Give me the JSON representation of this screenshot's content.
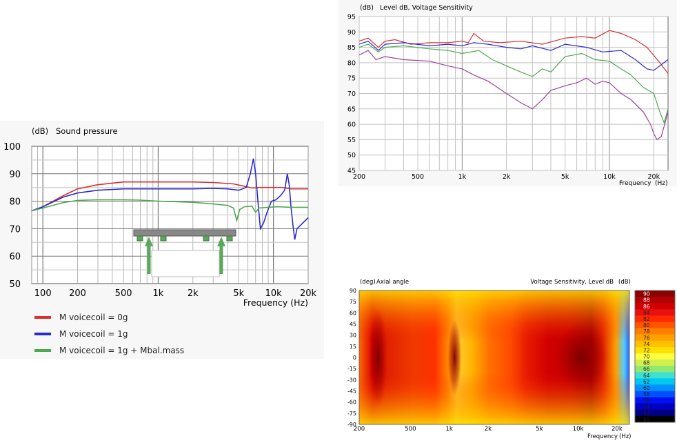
{
  "chart_data": [
    {
      "type": "line",
      "title": "Sound pressure",
      "ylabel_unit": "(dB)",
      "xlabel": "Frequency  (Hz)",
      "xscale": "log",
      "xlim": [
        80,
        20000
      ],
      "ylim": [
        50,
        100
      ],
      "yticks": [
        50,
        60,
        70,
        80,
        90,
        100
      ],
      "xticks": [
        {
          "v": 100,
          "label": "100"
        },
        {
          "v": 200,
          "label": "200"
        },
        {
          "v": 500,
          "label": "500"
        },
        {
          "v": 1000,
          "label": "1k"
        },
        {
          "v": 2000,
          "label": "2k"
        },
        {
          "v": 5000,
          "label": "5k"
        },
        {
          "v": 10000,
          "label": "10k"
        },
        {
          "v": 20000,
          "label": "20k"
        }
      ],
      "grid": true,
      "series": [
        {
          "name": "M voicecoil = 0g",
          "color": "#d93030",
          "points": [
            [
              80,
              76.5
            ],
            [
              100,
              78
            ],
            [
              150,
              82
            ],
            [
              200,
              84.5
            ],
            [
              300,
              86
            ],
            [
              500,
              87
            ],
            [
              1000,
              87
            ],
            [
              2000,
              87
            ],
            [
              3000,
              86.8
            ],
            [
              4500,
              86.3
            ],
            [
              5500,
              85.5
            ],
            [
              6500,
              84.8
            ],
            [
              7500,
              85
            ],
            [
              9000,
              85
            ],
            [
              12000,
              85
            ],
            [
              14000,
              84.5
            ],
            [
              20000,
              84.5
            ]
          ]
        },
        {
          "name": "M voicecoil = 1g",
          "color": "#2a2ad0",
          "points": [
            [
              80,
              76.5
            ],
            [
              100,
              78
            ],
            [
              150,
              81.5
            ],
            [
              200,
              83
            ],
            [
              300,
              84
            ],
            [
              500,
              84.5
            ],
            [
              1000,
              84.5
            ],
            [
              2000,
              84.5
            ],
            [
              3000,
              84.7
            ],
            [
              4000,
              84.5
            ],
            [
              5000,
              84
            ],
            [
              5800,
              85
            ],
            [
              6300,
              90
            ],
            [
              6700,
              95.5
            ],
            [
              7000,
              90
            ],
            [
              7400,
              78
            ],
            [
              7700,
              70
            ],
            [
              8200,
              72
            ],
            [
              8800,
              76
            ],
            [
              9600,
              80
            ],
            [
              10500,
              80.5
            ],
            [
              11500,
              82
            ],
            [
              12500,
              84
            ],
            [
              13200,
              90
            ],
            [
              13700,
              86
            ],
            [
              14200,
              78
            ],
            [
              14700,
              72
            ],
            [
              15300,
              66
            ],
            [
              16000,
              70
            ],
            [
              20000,
              74
            ]
          ]
        },
        {
          "name": "M voicecoil = 1g + Mbal.mass",
          "color": "#4ea84e",
          "points": [
            [
              80,
              76.5
            ],
            [
              100,
              77.5
            ],
            [
              150,
              79.5
            ],
            [
              200,
              80.3
            ],
            [
              300,
              80.5
            ],
            [
              500,
              80.5
            ],
            [
              700,
              80.4
            ],
            [
              1000,
              80
            ],
            [
              1500,
              79.8
            ],
            [
              2000,
              79.6
            ],
            [
              3000,
              79
            ],
            [
              4000,
              78.5
            ],
            [
              4500,
              77.5
            ],
            [
              4800,
              73
            ],
            [
              5100,
              77
            ],
            [
              5600,
              78
            ],
            [
              6500,
              78.2
            ],
            [
              7000,
              76
            ],
            [
              7500,
              77.5
            ],
            [
              9000,
              77.8
            ],
            [
              11000,
              78
            ],
            [
              14000,
              77.8
            ],
            [
              20000,
              77.8
            ]
          ]
        }
      ]
    },
    {
      "type": "line",
      "title": "Level dB, Voltage Sensitivity",
      "ylabel_unit": "(dB)",
      "xlabel": "Frequency",
      "xunit": "(Hz)",
      "xscale": "log",
      "xlim": [
        200,
        25000
      ],
      "ylim": [
        45,
        95
      ],
      "yticks": [
        45,
        50,
        55,
        60,
        65,
        70,
        75,
        80,
        85,
        90,
        95
      ],
      "xticks": [
        {
          "v": 200,
          "label": "200"
        },
        {
          "v": 500,
          "label": "500"
        },
        {
          "v": 1000,
          "label": "1k"
        },
        {
          "v": 2000,
          "label": "2k"
        },
        {
          "v": 5000,
          "label": "5k"
        },
        {
          "v": 10000,
          "label": "10k"
        },
        {
          "v": 20000,
          "label": "20k"
        }
      ],
      "grid": true,
      "series": [
        {
          "color": "#d93030",
          "points": [
            [
              200,
              87
            ],
            [
              230,
              88
            ],
            [
              270,
              85
            ],
            [
              300,
              87
            ],
            [
              350,
              87.5
            ],
            [
              450,
              86
            ],
            [
              600,
              86.5
            ],
            [
              800,
              86.5
            ],
            [
              1000,
              87
            ],
            [
              1100,
              86.5
            ],
            [
              1200,
              89.5
            ],
            [
              1400,
              87
            ],
            [
              1800,
              86.5
            ],
            [
              2500,
              87
            ],
            [
              3500,
              86
            ],
            [
              5000,
              88
            ],
            [
              6500,
              88.5
            ],
            [
              8000,
              88
            ],
            [
              10000,
              90.5
            ],
            [
              12000,
              89.5
            ],
            [
              15000,
              87.5
            ],
            [
              18000,
              85
            ],
            [
              22000,
              80
            ],
            [
              25000,
              76.5
            ]
          ]
        },
        {
          "color": "#2a2ad0",
          "points": [
            [
              200,
              86
            ],
            [
              230,
              87
            ],
            [
              270,
              84
            ],
            [
              300,
              86
            ],
            [
              400,
              86.5
            ],
            [
              600,
              85.5
            ],
            [
              800,
              86
            ],
            [
              1000,
              85.5
            ],
            [
              1200,
              86.5
            ],
            [
              1500,
              86
            ],
            [
              2000,
              85
            ],
            [
              2500,
              84.5
            ],
            [
              3000,
              85.5
            ],
            [
              4000,
              84
            ],
            [
              5000,
              86
            ],
            [
              7000,
              85
            ],
            [
              9000,
              83.5
            ],
            [
              12000,
              84
            ],
            [
              15000,
              81
            ],
            [
              18000,
              78
            ],
            [
              20000,
              77.5
            ],
            [
              22000,
              79
            ],
            [
              25000,
              81
            ]
          ]
        },
        {
          "color": "#4ea84e",
          "points": [
            [
              200,
              85
            ],
            [
              230,
              86
            ],
            [
              270,
              83.5
            ],
            [
              300,
              85
            ],
            [
              400,
              85.5
            ],
            [
              600,
              84.5
            ],
            [
              800,
              84
            ],
            [
              1000,
              83
            ],
            [
              1300,
              84
            ],
            [
              1600,
              81
            ],
            [
              2000,
              79
            ],
            [
              2500,
              77
            ],
            [
              3000,
              75.5
            ],
            [
              3500,
              78
            ],
            [
              4000,
              77
            ],
            [
              5000,
              82
            ],
            [
              6500,
              83
            ],
            [
              8000,
              81
            ],
            [
              10000,
              80.5
            ],
            [
              12000,
              78
            ],
            [
              14000,
              76
            ],
            [
              17000,
              72
            ],
            [
              20000,
              70
            ],
            [
              22000,
              64
            ],
            [
              23500,
              60.5
            ],
            [
              25000,
              65
            ]
          ]
        },
        {
          "color": "#a040a0",
          "points": [
            [
              200,
              82.5
            ],
            [
              230,
              84
            ],
            [
              260,
              81
            ],
            [
              300,
              82
            ],
            [
              400,
              81
            ],
            [
              600,
              80.5
            ],
            [
              800,
              79
            ],
            [
              1000,
              78
            ],
            [
              1200,
              76
            ],
            [
              1500,
              74
            ],
            [
              2000,
              70
            ],
            [
              2500,
              67
            ],
            [
              3000,
              65
            ],
            [
              3500,
              68
            ],
            [
              4000,
              71
            ],
            [
              5000,
              72.5
            ],
            [
              6000,
              73.5
            ],
            [
              7000,
              75
            ],
            [
              8000,
              73
            ],
            [
              9000,
              74
            ],
            [
              10000,
              73.5
            ],
            [
              12000,
              70
            ],
            [
              14000,
              68
            ],
            [
              17000,
              64
            ],
            [
              19000,
              60
            ],
            [
              20000,
              57
            ],
            [
              21000,
              55
            ],
            [
              22500,
              56
            ],
            [
              25000,
              64
            ]
          ]
        }
      ]
    },
    {
      "type": "heatmap",
      "title_left": "Axial angle",
      "ylabel_unit": "(deg)",
      "title_right": "Voltage Sensitivity, Level dB",
      "value_unit": "(dB)",
      "xlabel": "Frequency",
      "xunit": "(Hz)",
      "xscale": "log",
      "xlim": [
        200,
        25000
      ],
      "ylim": [
        -90,
        90
      ],
      "yticks": [
        90,
        75,
        60,
        45,
        30,
        15,
        0,
        -15,
        -30,
        -45,
        -60,
        -75,
        -90
      ],
      "xticks": [
        {
          "v": 200,
          "label": "200"
        },
        {
          "v": 500,
          "label": "500"
        },
        {
          "v": 1000,
          "label": "1k"
        },
        {
          "v": 2000,
          "label": "2k"
        },
        {
          "v": 5000,
          "label": "5k"
        },
        {
          "v": 10000,
          "label": "10k"
        },
        {
          "v": 20000,
          "label": "20k"
        }
      ],
      "colorbar_values": [
        90,
        88,
        86,
        84,
        82,
        80,
        78,
        76,
        74,
        72,
        70,
        68,
        66,
        64,
        62,
        60,
        58,
        56,
        54,
        52,
        50
      ],
      "colorbar_colors": [
        "#8b0000",
        "#b00000",
        "#d00000",
        "#e81010",
        "#ff2a00",
        "#ff5500",
        "#ff8000",
        "#ffa000",
        "#ffc000",
        "#ffe000",
        "#ffff40",
        "#d0f050",
        "#90e870",
        "#40e0d0",
        "#00c8f0",
        "#0090ff",
        "#0050ff",
        "#0010f0",
        "#0000c0",
        "#000080",
        "#000000"
      ]
    }
  ]
}
